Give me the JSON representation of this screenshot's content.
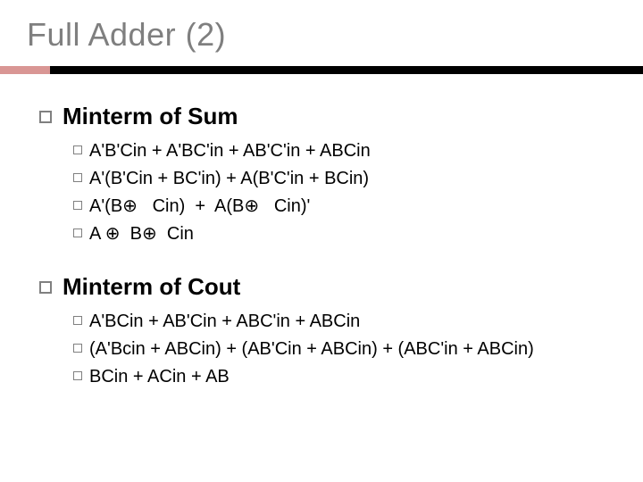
{
  "title": "Full Adder (2)",
  "colors": {
    "title_color": "#7f7f7f",
    "accent_color": "#d99694",
    "line_color": "#000000",
    "text_color": "#000000",
    "bullet_border": "#808080",
    "background": "#ffffff"
  },
  "typography": {
    "title_fontsize": 36,
    "section_fontsize": 26,
    "item_fontsize": 20,
    "font_family": "Arial"
  },
  "sections": [
    {
      "heading": "Minterm of Sum",
      "items": [
        "A'B'Cin + A'BC'in + AB'C'in + ABCin",
        "A'(B'Cin + BC'in) + A(B'C'in + BCin)",
        "A'(B⊕   Cin)  +  A(B⊕   Cin)'",
        "A ⊕  B⊕  Cin"
      ]
    },
    {
      "heading": "Minterm of Cout",
      "items": [
        "A'BCin + AB'Cin + ABC'in + ABCin",
        "(A'Bcin + ABCin) + (AB'Cin + ABCin) + (ABC'in + ABCin)",
        "BCin + ACin + AB"
      ]
    }
  ]
}
